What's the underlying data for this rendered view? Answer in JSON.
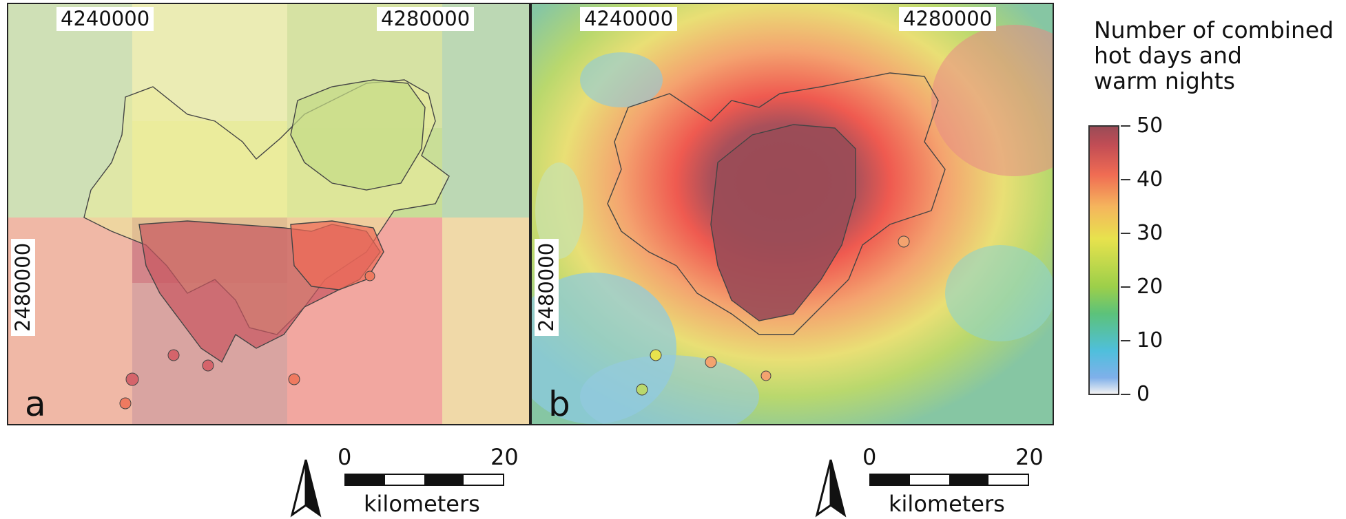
{
  "panels": [
    {
      "id": "a",
      "label": "a",
      "x_coords": [
        "4240000",
        "4280000"
      ],
      "y_coord": "2480000"
    },
    {
      "id": "b",
      "label": "b",
      "x_coords": [
        "4240000",
        "4280000"
      ],
      "y_coord": "2480000"
    }
  ],
  "legend": {
    "title_lines": [
      "Number of combined",
      "hot days and",
      "warm nights"
    ],
    "ticks": [
      "50",
      "40",
      "30",
      "20",
      "10",
      "0"
    ],
    "min": 0,
    "max": 50
  },
  "scalebars": [
    {
      "start": "0",
      "end": "20",
      "unit": "kilometers"
    },
    {
      "start": "0",
      "end": "20",
      "unit": "kilometers"
    }
  ],
  "icons": {
    "north": "north-arrow-icon"
  },
  "colors": {
    "low": "#f2f2f2",
    "cool": "#4fbfdc",
    "mid": "#e7e24d",
    "warm": "#f06c53",
    "high": "#9a4b56"
  }
}
